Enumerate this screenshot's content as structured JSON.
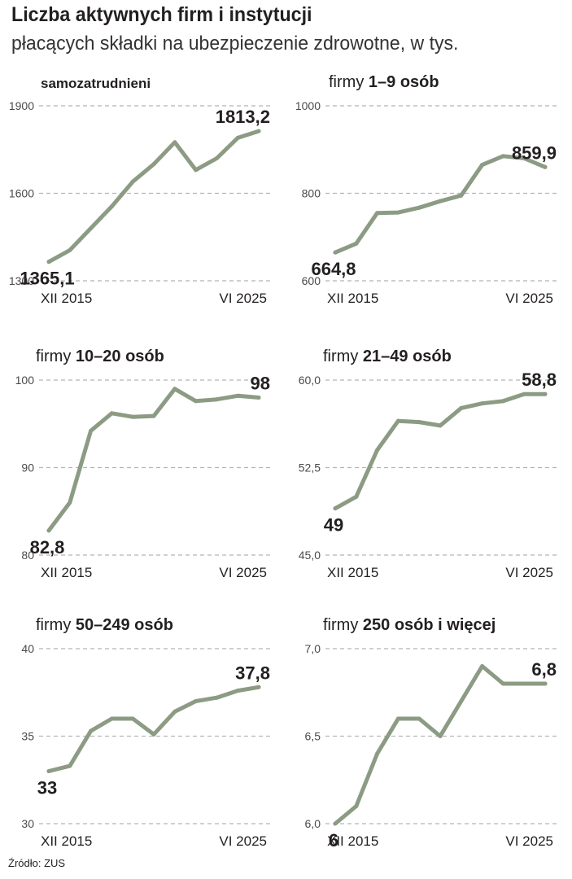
{
  "title": "Liczba aktywnych firm i instytucji",
  "subtitle": "płacących składki na ubezpieczenie zdrowotne, w tys.",
  "source": "Źródło: ZUS",
  "colors": {
    "line": "#8c9b83",
    "grid": "#b5b5b5",
    "text": "#231f20"
  },
  "chart_data": [
    {
      "type": "line",
      "title_prefix": "",
      "title_bold": "samozatrudnieni",
      "x_start_label": "XII 2015",
      "x_end_label": "VI 2025",
      "yticks": [
        "1300",
        "1600",
        "1900"
      ],
      "ylim": [
        1300,
        1900
      ],
      "values": [
        1365.1,
        1405,
        1480,
        1555,
        1640,
        1700,
        1775,
        1680,
        1720,
        1790,
        1813.2
      ],
      "first_label": "1365,1",
      "last_label": "1813,2"
    },
    {
      "type": "line",
      "title_prefix": "firmy ",
      "title_bold": "1–9 osób",
      "x_start_label": "XII 2015",
      "x_end_label": "VI 2025",
      "yticks": [
        "600",
        "800",
        "1000"
      ],
      "ylim": [
        600,
        1000
      ],
      "values": [
        664.8,
        685,
        755,
        756,
        767,
        782,
        795,
        865,
        885,
        880,
        859.9
      ],
      "first_label": "664,8",
      "last_label": "859,9"
    },
    {
      "type": "line",
      "title_prefix": "firmy ",
      "title_bold": "10–20 osób",
      "x_start_label": "XII 2015",
      "x_end_label": "VI 2025",
      "yticks": [
        "80",
        "90",
        "100"
      ],
      "ylim": [
        80,
        100
      ],
      "values": [
        82.8,
        86,
        94.2,
        96.2,
        95.8,
        95.9,
        99,
        97.6,
        97.8,
        98.2,
        98
      ],
      "first_label": "82,8",
      "last_label": "98"
    },
    {
      "type": "line",
      "title_prefix": "firmy ",
      "title_bold": "21–49 osób",
      "x_start_label": "XII 2015",
      "x_end_label": "VI 2025",
      "yticks": [
        "45,0",
        "52,5",
        "60,0"
      ],
      "ylim": [
        45,
        60
      ],
      "values": [
        49,
        50,
        54,
        56.5,
        56.4,
        56.1,
        57.6,
        58.0,
        58.2,
        58.8,
        58.8
      ],
      "first_label": "49",
      "last_label": "58,8"
    },
    {
      "type": "line",
      "title_prefix": "firmy ",
      "title_bold": "50–249 osób",
      "x_start_label": "XII 2015",
      "x_end_label": "VI 2025",
      "yticks": [
        "30",
        "35",
        "40"
      ],
      "ylim": [
        30,
        40
      ],
      "values": [
        33,
        33.3,
        35.3,
        36,
        36,
        35.1,
        36.4,
        37,
        37.2,
        37.6,
        37.8
      ],
      "first_label": "33",
      "last_label": "37,8"
    },
    {
      "type": "line",
      "title_prefix": "firmy ",
      "title_bold": "250 osób i więcej",
      "x_start_label": "XII 2015",
      "x_end_label": "VI 2025",
      "yticks": [
        "6,0",
        "6,5",
        "7,0"
      ],
      "ylim": [
        6,
        7
      ],
      "values": [
        6,
        6.1,
        6.4,
        6.6,
        6.6,
        6.5,
        6.7,
        6.9,
        6.8,
        6.8,
        6.8
      ],
      "first_label": "6",
      "last_label": "6,8"
    }
  ]
}
